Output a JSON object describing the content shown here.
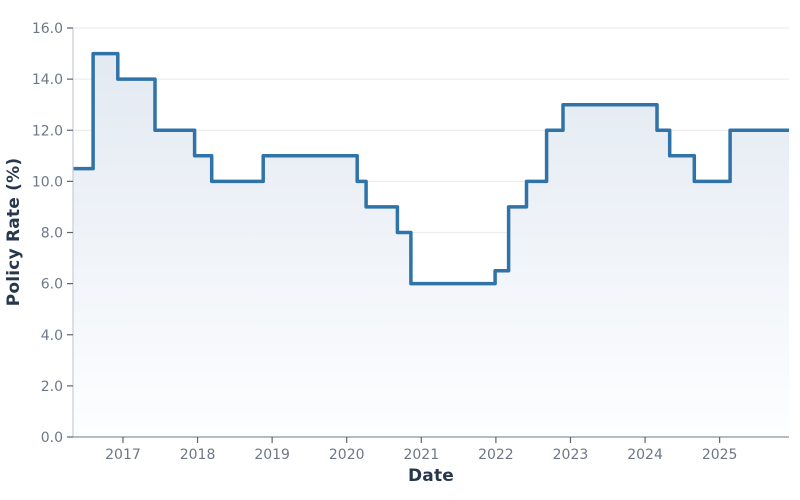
{
  "chart_data": {
    "type": "area",
    "step": true,
    "title": "",
    "xlabel": "Date",
    "ylabel": "Policy Rate (%)",
    "xlim": [
      2016.33,
      2025.93
    ],
    "ylim": [
      0,
      16
    ],
    "x_ticks": [
      {
        "value": 2017,
        "label": "2017"
      },
      {
        "value": 2018,
        "label": "2018"
      },
      {
        "value": 2019,
        "label": "2019"
      },
      {
        "value": 2020,
        "label": "2020"
      },
      {
        "value": 2021,
        "label": "2021"
      },
      {
        "value": 2022,
        "label": "2022"
      },
      {
        "value": 2023,
        "label": "2023"
      },
      {
        "value": 2024,
        "label": "2024"
      },
      {
        "value": 2025,
        "label": "2025"
      }
    ],
    "y_ticks": [
      {
        "value": 0,
        "label": "0.0"
      },
      {
        "value": 2,
        "label": "2.0"
      },
      {
        "value": 4,
        "label": "4.0"
      },
      {
        "value": 6,
        "label": "6.0"
      },
      {
        "value": 8,
        "label": "8.0"
      },
      {
        "value": 10,
        "label": "10.0"
      },
      {
        "value": 12,
        "label": "12.0"
      },
      {
        "value": 14,
        "label": "14.0"
      },
      {
        "value": 16,
        "label": "16.0"
      }
    ],
    "grid": true,
    "legend": "none",
    "series": [
      {
        "name": "Policy Rate",
        "steps": [
          {
            "x": 2016.33,
            "y": 10.5
          },
          {
            "x": 2016.6,
            "y": 15.0
          },
          {
            "x": 2016.93,
            "y": 14.0
          },
          {
            "x": 2017.43,
            "y": 12.0
          },
          {
            "x": 2017.96,
            "y": 11.0
          },
          {
            "x": 2018.19,
            "y": 10.0
          },
          {
            "x": 2018.88,
            "y": 11.0
          },
          {
            "x": 2020.14,
            "y": 10.0
          },
          {
            "x": 2020.26,
            "y": 9.0
          },
          {
            "x": 2020.68,
            "y": 8.0
          },
          {
            "x": 2020.86,
            "y": 6.0
          },
          {
            "x": 2021.99,
            "y": 6.5
          },
          {
            "x": 2022.17,
            "y": 9.0
          },
          {
            "x": 2022.41,
            "y": 10.0
          },
          {
            "x": 2022.68,
            "y": 12.0
          },
          {
            "x": 2022.9,
            "y": 13.0
          },
          {
            "x": 2024.16,
            "y": 12.0
          },
          {
            "x": 2024.33,
            "y": 11.0
          },
          {
            "x": 2024.66,
            "y": 10.0
          },
          {
            "x": 2025.14,
            "y": 12.0
          }
        ],
        "x_end": 2025.93
      }
    ],
    "colors": {
      "line": "#2f73a8",
      "fill_top": "#e1e8f1",
      "fill_bottom": "#fdfeff",
      "grid": "#ebedf0",
      "tick_label": "#6e7787",
      "axis_title": "#27384d",
      "spine_bottom": "#8d939c",
      "spine_left": "#c9cdd3",
      "tick_mark": "#5b6572"
    }
  }
}
